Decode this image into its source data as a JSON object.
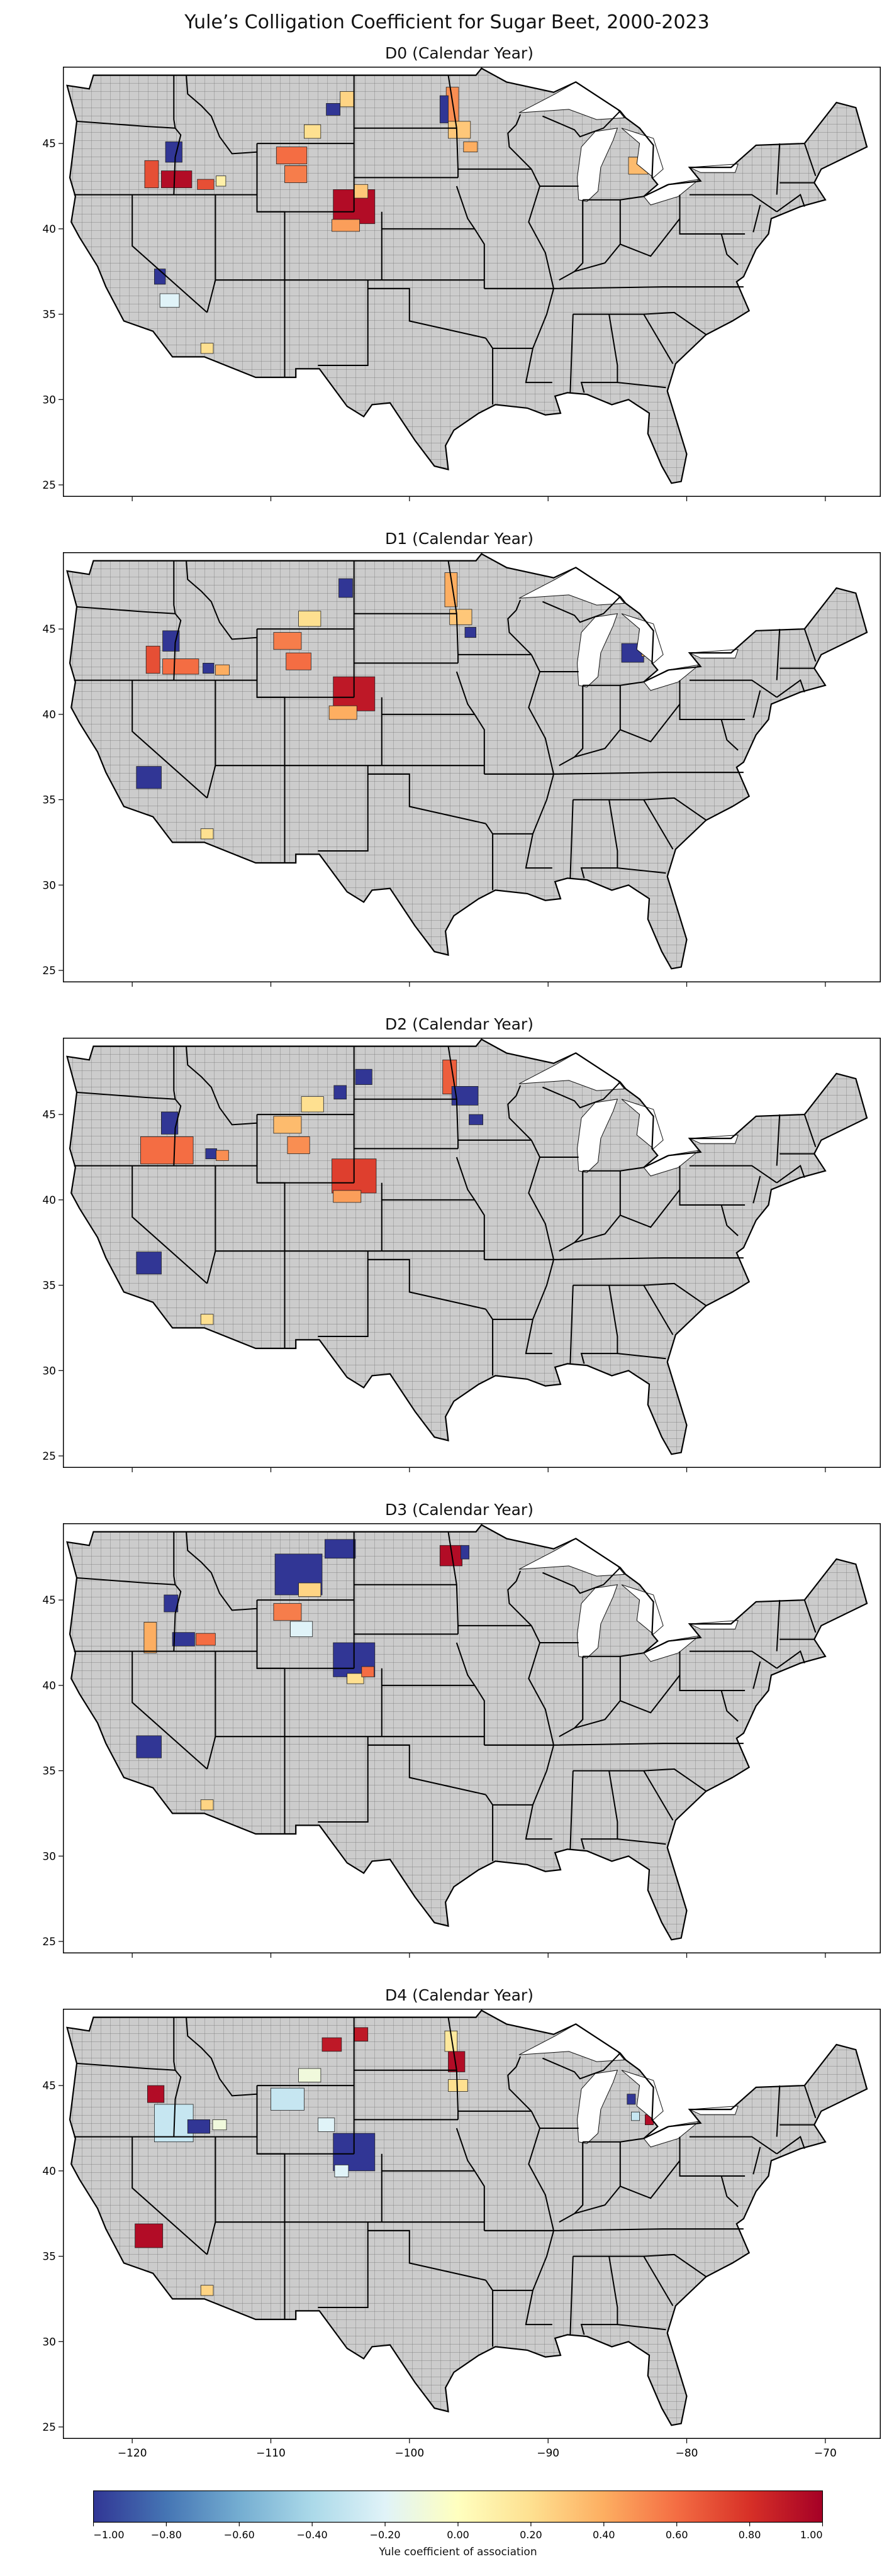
{
  "figure": {
    "title": "Yule’s Colligation Coefficient for Sugar Beet, 2000-2023"
  },
  "panels": [
    {
      "title": "D0 (Calendar Year)"
    },
    {
      "title": "D1 (Calendar Year)"
    },
    {
      "title": "D2 (Calendar Year)"
    },
    {
      "title": "D3 (Calendar Year)"
    },
    {
      "title": "D4 (Calendar Year)"
    }
  ],
  "axes": {
    "x_ticks": [
      "−120",
      "−110",
      "−100",
      "−90",
      "−80",
      "−70"
    ],
    "y_ticks": [
      "25",
      "30",
      "35",
      "40",
      "45"
    ],
    "x_range": [
      -125,
      -66
    ],
    "y_range": [
      24.3,
      49.5
    ]
  },
  "colorbar": {
    "label": "Yule coefficient of association",
    "ticks": [
      "−1.00",
      "−0.80",
      "−0.60",
      "−0.40",
      "−0.20",
      "0.00",
      "0.20",
      "0.40",
      "0.60",
      "0.80",
      "1.00"
    ],
    "range": [
      -1,
      1
    ],
    "colormap": "RdYlBu_r",
    "stops": [
      "#313695",
      "#4575b4",
      "#74add1",
      "#abd9e9",
      "#e0f3f8",
      "#ffffbf",
      "#fee090",
      "#fdae61",
      "#f46d43",
      "#d73027",
      "#a50026"
    ]
  },
  "map": {
    "background_color": "#d3d3d3",
    "no_data_color": "#cccccc"
  },
  "chart_data": {
    "type": "heatmap",
    "value_meaning": "Yule coefficient of association by county",
    "panels": [
      {
        "name": "D0 (Calendar Year)",
        "regions": [
          {
            "lon": -117,
            "lat": 44.5,
            "w": 1.2,
            "h": 1.2,
            "value": -1.0
          },
          {
            "lon": -118.6,
            "lat": 43.2,
            "w": 1.0,
            "h": 1.6,
            "value": 0.7
          },
          {
            "lon": -116.8,
            "lat": 42.9,
            "w": 2.2,
            "h": 1.0,
            "value": 0.95
          },
          {
            "lon": -114.7,
            "lat": 42.6,
            "w": 1.2,
            "h": 0.6,
            "value": 0.7
          },
          {
            "lon": -113.6,
            "lat": 42.8,
            "w": 0.7,
            "h": 0.6,
            "value": 0.1
          },
          {
            "lon": -118,
            "lat": 37.2,
            "w": 0.8,
            "h": 0.9,
            "value": -1.0
          },
          {
            "lon": -117.3,
            "lat": 35.8,
            "w": 1.4,
            "h": 0.8,
            "value": -0.2
          },
          {
            "lon": -114.6,
            "lat": 33.0,
            "w": 0.9,
            "h": 0.6,
            "value": 0.2
          },
          {
            "lon": -108.5,
            "lat": 44.3,
            "w": 2.2,
            "h": 1.0,
            "value": 0.6
          },
          {
            "lon": -107,
            "lat": 45.7,
            "w": 1.2,
            "h": 0.8,
            "value": 0.2
          },
          {
            "lon": -108.2,
            "lat": 43.2,
            "w": 1.6,
            "h": 1.0,
            "value": 0.55
          },
          {
            "lon": -105.5,
            "lat": 47.0,
            "w": 1.0,
            "h": 0.7,
            "value": -1.0
          },
          {
            "lon": -104.5,
            "lat": 47.6,
            "w": 1.0,
            "h": 0.9,
            "value": 0.25
          },
          {
            "lon": -104,
            "lat": 41.3,
            "w": 3.0,
            "h": 2.0,
            "value": 0.95
          },
          {
            "lon": -104.6,
            "lat": 40.2,
            "w": 2.0,
            "h": 0.7,
            "value": 0.45
          },
          {
            "lon": -103.5,
            "lat": 42.2,
            "w": 1.0,
            "h": 0.8,
            "value": 0.3
          },
          {
            "lon": -96.9,
            "lat": 47.3,
            "w": 0.9,
            "h": 2.0,
            "value": 0.5
          },
          {
            "lon": -96.4,
            "lat": 45.8,
            "w": 1.6,
            "h": 1.0,
            "value": 0.3
          },
          {
            "lon": -97.5,
            "lat": 47.0,
            "w": 0.6,
            "h": 1.6,
            "value": -1.0
          },
          {
            "lon": -95.6,
            "lat": 44.8,
            "w": 1.0,
            "h": 0.6,
            "value": 0.4
          },
          {
            "lon": -83.5,
            "lat": 43.7,
            "w": 1.4,
            "h": 1.0,
            "value": 0.35
          }
        ]
      },
      {
        "name": "D1 (Calendar Year)",
        "regions": [
          {
            "lon": -117.2,
            "lat": 44.3,
            "w": 1.2,
            "h": 1.2,
            "value": -1.0
          },
          {
            "lon": -118.5,
            "lat": 43.2,
            "w": 1.0,
            "h": 1.6,
            "value": 0.7
          },
          {
            "lon": -116.5,
            "lat": 42.8,
            "w": 2.6,
            "h": 0.9,
            "value": 0.6
          },
          {
            "lon": -114.5,
            "lat": 42.7,
            "w": 0.8,
            "h": 0.6,
            "value": -1.0
          },
          {
            "lon": -113.5,
            "lat": 42.6,
            "w": 1.0,
            "h": 0.6,
            "value": 0.4
          },
          {
            "lon": -118.8,
            "lat": 36.3,
            "w": 1.8,
            "h": 1.3,
            "value": -1.0
          },
          {
            "lon": -114.6,
            "lat": 33.0,
            "w": 0.9,
            "h": 0.6,
            "value": 0.2
          },
          {
            "lon": -108.8,
            "lat": 44.3,
            "w": 2.0,
            "h": 1.0,
            "value": 0.55
          },
          {
            "lon": -107.2,
            "lat": 45.6,
            "w": 1.6,
            "h": 0.9,
            "value": 0.2
          },
          {
            "lon": -108,
            "lat": 43.1,
            "w": 1.8,
            "h": 1.0,
            "value": 0.6
          },
          {
            "lon": -104.6,
            "lat": 47.4,
            "w": 1.0,
            "h": 1.1,
            "value": -1.0
          },
          {
            "lon": -104,
            "lat": 41.2,
            "w": 3.0,
            "h": 2.0,
            "value": 0.9
          },
          {
            "lon": -104.8,
            "lat": 40.1,
            "w": 2.0,
            "h": 0.8,
            "value": 0.4
          },
          {
            "lon": -97,
            "lat": 47.3,
            "w": 0.9,
            "h": 2.0,
            "value": 0.4
          },
          {
            "lon": -96.3,
            "lat": 45.7,
            "w": 1.6,
            "h": 0.9,
            "value": 0.3
          },
          {
            "lon": -95.6,
            "lat": 44.8,
            "w": 0.8,
            "h": 0.6,
            "value": -1.0
          },
          {
            "lon": -83.9,
            "lat": 43.6,
            "w": 1.6,
            "h": 1.1,
            "value": -1.0
          },
          {
            "lon": -83.0,
            "lat": 43.8,
            "w": 0.5,
            "h": 0.8,
            "value": 0.35
          }
        ]
      },
      {
        "name": "D2 (Calendar Year)",
        "regions": [
          {
            "lon": -117.3,
            "lat": 44.5,
            "w": 1.2,
            "h": 1.3,
            "value": -1.0
          },
          {
            "lon": -117.5,
            "lat": 42.9,
            "w": 3.8,
            "h": 1.6,
            "value": 0.6
          },
          {
            "lon": -114.3,
            "lat": 42.7,
            "w": 0.8,
            "h": 0.6,
            "value": -1.0
          },
          {
            "lon": -113.5,
            "lat": 42.6,
            "w": 0.9,
            "h": 0.6,
            "value": 0.5
          },
          {
            "lon": -118.8,
            "lat": 36.3,
            "w": 1.8,
            "h": 1.3,
            "value": -1.0
          },
          {
            "lon": -114.6,
            "lat": 33.0,
            "w": 0.9,
            "h": 0.6,
            "value": 0.2
          },
          {
            "lon": -108.8,
            "lat": 44.4,
            "w": 2.0,
            "h": 1.0,
            "value": 0.35
          },
          {
            "lon": -107.0,
            "lat": 45.6,
            "w": 1.6,
            "h": 0.9,
            "value": 0.2
          },
          {
            "lon": -108.0,
            "lat": 43.2,
            "w": 1.6,
            "h": 1.0,
            "value": 0.5
          },
          {
            "lon": -105.0,
            "lat": 46.3,
            "w": 0.9,
            "h": 0.8,
            "value": -1.0
          },
          {
            "lon": -103.3,
            "lat": 47.2,
            "w": 1.2,
            "h": 0.9,
            "value": -1.0
          },
          {
            "lon": -104,
            "lat": 41.4,
            "w": 3.2,
            "h": 2.0,
            "value": 0.75
          },
          {
            "lon": -104.5,
            "lat": 40.2,
            "w": 2.0,
            "h": 0.7,
            "value": 0.45
          },
          {
            "lon": -97.1,
            "lat": 47.2,
            "w": 1.0,
            "h": 2.0,
            "value": 0.65
          },
          {
            "lon": -96.0,
            "lat": 46.1,
            "w": 1.9,
            "h": 1.1,
            "value": -1.0
          },
          {
            "lon": -95.2,
            "lat": 44.7,
            "w": 1.0,
            "h": 0.6,
            "value": -1.0
          }
        ]
      },
      {
        "name": "D3 (Calendar Year)",
        "regions": [
          {
            "lon": -117.2,
            "lat": 44.8,
            "w": 1.0,
            "h": 1.0,
            "value": -1.0
          },
          {
            "lon": -118.7,
            "lat": 42.8,
            "w": 0.9,
            "h": 1.8,
            "value": 0.4
          },
          {
            "lon": -116.3,
            "lat": 42.7,
            "w": 1.6,
            "h": 0.8,
            "value": -1.0
          },
          {
            "lon": -114.7,
            "lat": 42.7,
            "w": 1.4,
            "h": 0.7,
            "value": 0.6
          },
          {
            "lon": -118.8,
            "lat": 36.4,
            "w": 1.8,
            "h": 1.3,
            "value": -1.0
          },
          {
            "lon": -114.6,
            "lat": 33.0,
            "w": 0.9,
            "h": 0.6,
            "value": 0.25
          },
          {
            "lon": -108.0,
            "lat": 46.5,
            "w": 3.4,
            "h": 2.4,
            "value": -1.0
          },
          {
            "lon": -105.0,
            "lat": 48.0,
            "w": 2.2,
            "h": 1.1,
            "value": -1.0
          },
          {
            "lon": -108.8,
            "lat": 44.3,
            "w": 2.0,
            "h": 1.0,
            "value": 0.55
          },
          {
            "lon": -107.2,
            "lat": 45.6,
            "w": 1.6,
            "h": 0.8,
            "value": 0.25
          },
          {
            "lon": -107.8,
            "lat": 43.3,
            "w": 1.6,
            "h": 0.9,
            "value": -0.2
          },
          {
            "lon": -104.0,
            "lat": 41.5,
            "w": 3.0,
            "h": 2.0,
            "value": -1.0
          },
          {
            "lon": -103.9,
            "lat": 40.4,
            "w": 1.2,
            "h": 0.6,
            "value": 0.2
          },
          {
            "lon": -103.0,
            "lat": 40.8,
            "w": 0.9,
            "h": 0.6,
            "value": 0.6
          },
          {
            "lon": -97.0,
            "lat": 47.6,
            "w": 1.6,
            "h": 1.2,
            "value": 0.95
          },
          {
            "lon": -96.0,
            "lat": 47.8,
            "w": 0.6,
            "h": 0.8,
            "value": -1.0
          }
        ]
      },
      {
        "name": "D4 (Calendar Year)",
        "regions": [
          {
            "lon": -118.3,
            "lat": 44.5,
            "w": 1.2,
            "h": 1.0,
            "value": 0.95
          },
          {
            "lon": -117.0,
            "lat": 42.8,
            "w": 2.8,
            "h": 2.2,
            "value": -0.3
          },
          {
            "lon": -115.2,
            "lat": 42.6,
            "w": 1.6,
            "h": 0.8,
            "value": -1.0
          },
          {
            "lon": -113.7,
            "lat": 42.7,
            "w": 1.0,
            "h": 0.6,
            "value": -0.1
          },
          {
            "lon": -118.8,
            "lat": 36.2,
            "w": 2.0,
            "h": 1.4,
            "value": 0.95
          },
          {
            "lon": -114.6,
            "lat": 33.0,
            "w": 0.9,
            "h": 0.6,
            "value": 0.25
          },
          {
            "lon": -108.8,
            "lat": 44.2,
            "w": 2.4,
            "h": 1.3,
            "value": -0.3
          },
          {
            "lon": -107.2,
            "lat": 45.6,
            "w": 1.6,
            "h": 0.8,
            "value": -0.1
          },
          {
            "lon": -106.0,
            "lat": 42.7,
            "w": 1.2,
            "h": 0.8,
            "value": -0.2
          },
          {
            "lon": -105.6,
            "lat": 47.4,
            "w": 1.4,
            "h": 0.8,
            "value": 0.9
          },
          {
            "lon": -103.5,
            "lat": 48.0,
            "w": 1.0,
            "h": 0.8,
            "value": 0.9
          },
          {
            "lon": -104.0,
            "lat": 41.1,
            "w": 3.0,
            "h": 2.2,
            "value": -1.0
          },
          {
            "lon": -104.9,
            "lat": 40.0,
            "w": 1.0,
            "h": 0.7,
            "value": -0.2
          },
          {
            "lon": -97.0,
            "lat": 47.6,
            "w": 0.9,
            "h": 1.2,
            "value": 0.15
          },
          {
            "lon": -96.6,
            "lat": 46.4,
            "w": 1.2,
            "h": 1.2,
            "value": 0.95
          },
          {
            "lon": -96.5,
            "lat": 45.0,
            "w": 1.4,
            "h": 0.7,
            "value": 0.2
          },
          {
            "lon": -84.0,
            "lat": 44.2,
            "w": 0.6,
            "h": 0.6,
            "value": -1.0
          },
          {
            "lon": -83.7,
            "lat": 43.2,
            "w": 0.6,
            "h": 0.5,
            "value": -0.3
          },
          {
            "lon": -82.7,
            "lat": 43.0,
            "w": 0.6,
            "h": 0.6,
            "value": 0.95
          }
        ]
      }
    ]
  }
}
